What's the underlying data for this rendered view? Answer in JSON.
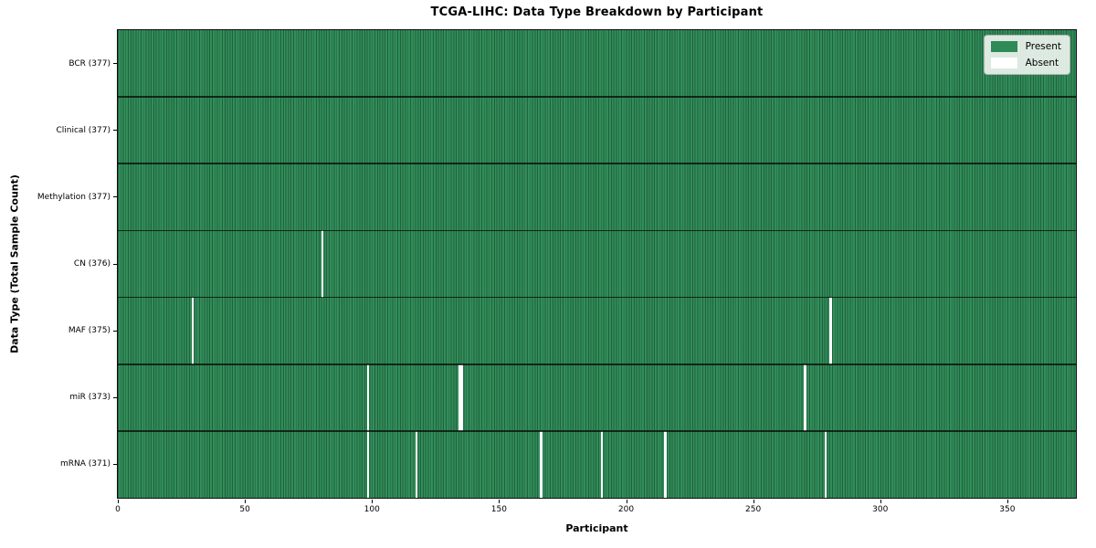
{
  "chart_data": {
    "type": "heatmap",
    "title": "TCGA-LIHC: Data Type Breakdown by Participant",
    "xlabel": "Participant",
    "ylabel": "Data Type (Total Sample Count)",
    "n_participants": 377,
    "x_ticks": [
      0,
      50,
      100,
      150,
      200,
      250,
      300,
      350
    ],
    "x_range": [
      0,
      377
    ],
    "grid": "row-and-cell-borders",
    "legend_position": "upper-right",
    "colors": {
      "present": "#2e8b57",
      "absent": "#ffffff"
    },
    "legend": [
      {
        "label": "Present",
        "color": "#2e8b57"
      },
      {
        "label": "Absent",
        "color": "#ffffff"
      }
    ],
    "rows": [
      {
        "label": "BCR (377)",
        "data_type": "BCR",
        "total_samples": 377,
        "absent_participants": []
      },
      {
        "label": "Clinical (377)",
        "data_type": "Clinical",
        "total_samples": 377,
        "absent_participants": []
      },
      {
        "label": "Methylation (377)",
        "data_type": "Methylation",
        "total_samples": 377,
        "absent_participants": []
      },
      {
        "label": "CN (376)",
        "data_type": "CN",
        "total_samples": 376,
        "absent_participants": [
          80
        ]
      },
      {
        "label": "MAF (375)",
        "data_type": "MAF",
        "total_samples": 375,
        "absent_participants": [
          29,
          280
        ]
      },
      {
        "label": "miR (373)",
        "data_type": "miR",
        "total_samples": 373,
        "absent_participants": [
          98,
          134,
          135,
          270
        ]
      },
      {
        "label": "mRNA (371)",
        "data_type": "mRNA",
        "total_samples": 371,
        "absent_participants": [
          98,
          117,
          166,
          190,
          215,
          278
        ]
      }
    ]
  }
}
